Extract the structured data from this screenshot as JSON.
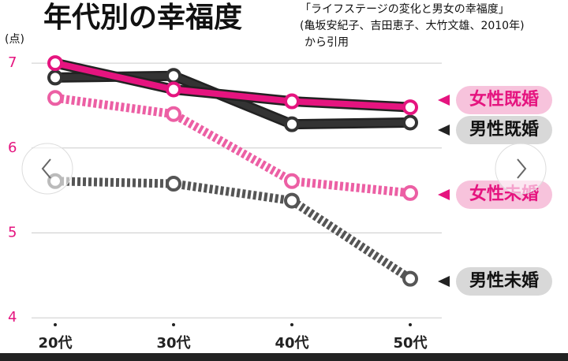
{
  "chart_data": {
    "type": "line",
    "title": "年代別の幸福度",
    "source": [
      "「ライフステージの変化と男女の幸福度」",
      "(亀坂安紀子、吉田恵子、大竹文雄、2010年)",
      "から引用"
    ],
    "y_label": "(点)",
    "categories": [
      "20代",
      "30代",
      "40代",
      "50代"
    ],
    "ylim": [
      3.9,
      7.4
    ],
    "yticks": [
      4,
      5,
      6,
      7
    ],
    "grid": true,
    "series": [
      {
        "name": "女性既婚",
        "color": "#e5147f",
        "dashed": false,
        "values": [
          7.0,
          6.69,
          6.55,
          6.48
        ]
      },
      {
        "name": "男性既婚",
        "color": "#333333",
        "dashed": false,
        "values": [
          6.83,
          6.85,
          6.28,
          6.3
        ]
      },
      {
        "name": "女性未婚",
        "color": "#ec5fa4",
        "dashed": true,
        "values": [
          6.59,
          6.4,
          5.61,
          5.47
        ]
      },
      {
        "name": "男性未婚",
        "color": "#555555",
        "dashed": true,
        "values": [
          5.61,
          5.58,
          5.38,
          4.46
        ]
      }
    ]
  }
}
